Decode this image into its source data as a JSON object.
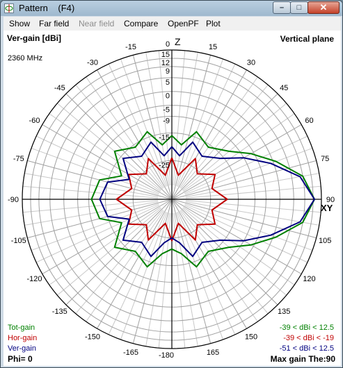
{
  "window": {
    "title": "Pattern    (F4)",
    "buttons": {
      "minimize": "–",
      "maximize": "□",
      "close": "✕"
    }
  },
  "menu": {
    "items": [
      {
        "label": "Show",
        "enabled": true
      },
      {
        "label": "Far field",
        "enabled": true
      },
      {
        "label": "Near field",
        "enabled": false
      },
      {
        "label": "Compare",
        "enabled": true
      },
      {
        "label": "OpenPF",
        "enabled": true
      },
      {
        "label": "Plot",
        "enabled": true
      }
    ]
  },
  "plot": {
    "gain_type": "Ver-gain [dBi]",
    "plane": "Vertical plane",
    "frequency": "2360 MHz",
    "z_axis": "Z",
    "xy_axis": "XY",
    "phi": "Phi= 0",
    "max_gain": "Max gain The:90",
    "legend": [
      {
        "name": "Tot-gain",
        "color": "#008000",
        "range": "-39 < dBi < 12.5"
      },
      {
        "name": "Hor-gain",
        "color": "#c00000",
        "range": "-39 < dBi < -19"
      },
      {
        "name": "Ver-gain",
        "color": "#000080",
        "range": "-51 < dBi < 12.5"
      }
    ]
  },
  "chart_data": {
    "type": "polar",
    "angle_unit": "degrees",
    "angle_labels": [
      "0",
      "15",
      "30",
      "45",
      "60",
      "75",
      "90",
      "105",
      "120",
      "135",
      "150",
      "165",
      "-180",
      "-165",
      "-150",
      "-135",
      "-120",
      "-105",
      "-90",
      "-75",
      "-60",
      "-45",
      "-30",
      "-15"
    ],
    "radial_range_dbi": [
      -39,
      15
    ],
    "radial_labels": [
      "15",
      "12",
      "9",
      "5",
      "0",
      "-5",
      "-9",
      "-15",
      "-25"
    ],
    "radial_label_values": [
      15,
      12,
      9,
      5,
      0,
      -5,
      -9,
      -15,
      -25
    ],
    "series": [
      {
        "name": "Tot-gain",
        "color": "#008000",
        "points": [
          [
            0,
            -16
          ],
          [
            10,
            -19
          ],
          [
            20,
            -13
          ],
          [
            35,
            -16
          ],
          [
            50,
            -12
          ],
          [
            60,
            -6
          ],
          [
            70,
            1
          ],
          [
            80,
            9
          ],
          [
            90,
            12.5
          ],
          [
            100,
            9
          ],
          [
            110,
            1
          ],
          [
            120,
            -6
          ],
          [
            130,
            -12
          ],
          [
            145,
            -16
          ],
          [
            160,
            -13
          ],
          [
            170,
            -19
          ],
          [
            180,
            -21
          ],
          [
            190,
            -19
          ],
          [
            200,
            -13
          ],
          [
            215,
            -16
          ],
          [
            230,
            -12
          ],
          [
            245,
            -19
          ],
          [
            255,
            -12
          ],
          [
            270,
            -10
          ],
          [
            285,
            -12
          ],
          [
            295,
            -19
          ],
          [
            310,
            -12
          ],
          [
            325,
            -16
          ],
          [
            340,
            -13
          ],
          [
            350,
            -19
          ],
          [
            360,
            -16
          ]
        ]
      },
      {
        "name": "Hor-gain",
        "color": "#c00000",
        "points": [
          [
            0,
            -24
          ],
          [
            15,
            -30
          ],
          [
            30,
            -22
          ],
          [
            45,
            -26
          ],
          [
            60,
            -21
          ],
          [
            75,
            -24
          ],
          [
            90,
            -19
          ],
          [
            105,
            -24
          ],
          [
            120,
            -21
          ],
          [
            135,
            -26
          ],
          [
            150,
            -22
          ],
          [
            165,
            -30
          ],
          [
            180,
            -24
          ],
          [
            195,
            -30
          ],
          [
            210,
            -22
          ],
          [
            225,
            -26
          ],
          [
            240,
            -21
          ],
          [
            255,
            -24
          ],
          [
            270,
            -19
          ],
          [
            285,
            -24
          ],
          [
            300,
            -21
          ],
          [
            315,
            -26
          ],
          [
            330,
            -22
          ],
          [
            345,
            -30
          ],
          [
            360,
            -24
          ]
        ]
      },
      {
        "name": "Ver-gain",
        "color": "#000080",
        "points": [
          [
            0,
            -20
          ],
          [
            10,
            -23
          ],
          [
            20,
            -17
          ],
          [
            35,
            -20
          ],
          [
            50,
            -16
          ],
          [
            60,
            -9
          ],
          [
            70,
            -1
          ],
          [
            80,
            8
          ],
          [
            90,
            12.5
          ],
          [
            100,
            8
          ],
          [
            110,
            -1
          ],
          [
            120,
            -9
          ],
          [
            130,
            -16
          ],
          [
            145,
            -20
          ],
          [
            160,
            -17
          ],
          [
            170,
            -23
          ],
          [
            180,
            -25
          ],
          [
            190,
            -23
          ],
          [
            200,
            -17
          ],
          [
            215,
            -20
          ],
          [
            230,
            -16
          ],
          [
            245,
            -22
          ],
          [
            255,
            -15
          ],
          [
            270,
            -13
          ],
          [
            285,
            -15
          ],
          [
            295,
            -22
          ],
          [
            310,
            -16
          ],
          [
            325,
            -20
          ],
          [
            340,
            -17
          ],
          [
            350,
            -23
          ],
          [
            360,
            -20
          ]
        ]
      }
    ]
  }
}
